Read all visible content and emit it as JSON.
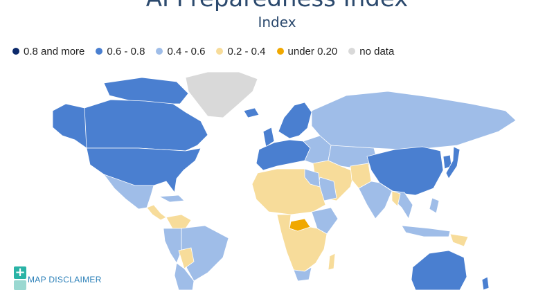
{
  "title": "AI Preparedness Index",
  "subtitle": "Index",
  "legend": [
    {
      "label": "0.8 and more",
      "color": "#0d2a6b"
    },
    {
      "label": "0.6 - 0.8",
      "color": "#4a7fd0"
    },
    {
      "label": "0.4 - 0.6",
      "color": "#9fbde8"
    },
    {
      "label": "0.2 - 0.4",
      "color": "#f7dc9a"
    },
    {
      "label": "under 0.20",
      "color": "#f0a800"
    },
    {
      "label": "no data",
      "color": "#d9d9d9"
    }
  ],
  "disclaimer": {
    "icon": "plus-icon",
    "label": "MAP DISCLAIMER"
  }
}
